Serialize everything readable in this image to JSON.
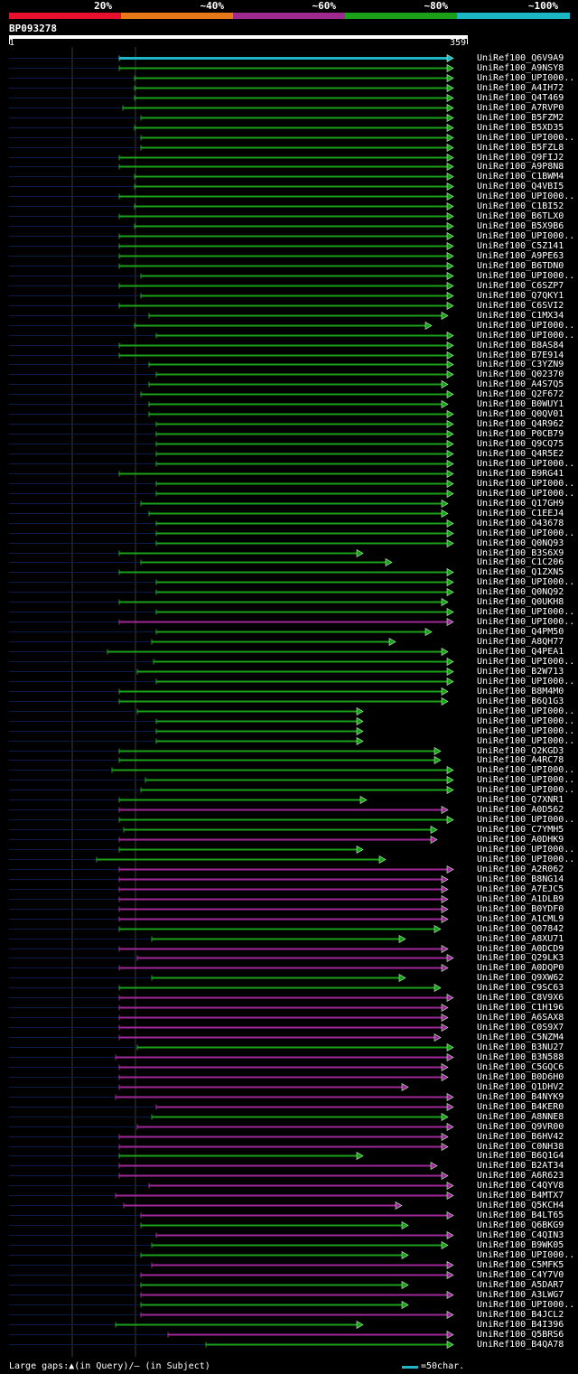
{
  "legend": [
    {
      "label": "20%",
      "color": "#e8112d"
    },
    {
      "label": "~40%",
      "color": "#e67817"
    },
    {
      "label": "~60%",
      "color": "#9e2a8e"
    },
    {
      "label": "~80%",
      "color": "#1aa019"
    },
    {
      "label": "~100%",
      "color": "#1bb7c4"
    }
  ],
  "query": {
    "id": "BP093278",
    "start": "1",
    "end": "359",
    "length": 359
  },
  "colors": {
    "green": "#1aa019",
    "magenta": "#a0289a",
    "cyan": "#1bb7c4",
    "gridline": "#3a3a3a",
    "leader": "#0a1a4a"
  },
  "hits": [
    {
      "name": "UniRef100_Q6V9A9",
      "start": 132,
      "end": 496,
      "color": "cyan"
    },
    {
      "name": "UniRef100_A9NSY8",
      "start": 132,
      "end": 496,
      "color": "green"
    },
    {
      "name": "UniRef100_UPI000..",
      "start": 149,
      "end": 496,
      "color": "green"
    },
    {
      "name": "UniRef100_A4IH72",
      "start": 149,
      "end": 496,
      "color": "green"
    },
    {
      "name": "UniRef100_Q4T469",
      "start": 149,
      "end": 496,
      "color": "green"
    },
    {
      "name": "UniRef100_A7RVP0",
      "start": 136,
      "end": 496,
      "color": "green"
    },
    {
      "name": "UniRef100_B5FZM2",
      "start": 156,
      "end": 496,
      "color": "green"
    },
    {
      "name": "UniRef100_B5XD35",
      "start": 149,
      "end": 496,
      "color": "green"
    },
    {
      "name": "UniRef100_UPI000..",
      "start": 156,
      "end": 496,
      "color": "green"
    },
    {
      "name": "UniRef100_B5FZL8",
      "start": 156,
      "end": 496,
      "color": "green"
    },
    {
      "name": "UniRef100_Q9FIJ2",
      "start": 132,
      "end": 496,
      "color": "green"
    },
    {
      "name": "UniRef100_A9P8N8",
      "start": 132,
      "end": 496,
      "color": "green"
    },
    {
      "name": "UniRef100_C1BWM4",
      "start": 149,
      "end": 496,
      "color": "green"
    },
    {
      "name": "UniRef100_Q4VBI5",
      "start": 149,
      "end": 496,
      "color": "green"
    },
    {
      "name": "UniRef100_UPI000..",
      "start": 132,
      "end": 496,
      "color": "green"
    },
    {
      "name": "UniRef100_C1BI52",
      "start": 149,
      "end": 496,
      "color": "green"
    },
    {
      "name": "UniRef100_B6TLX0",
      "start": 132,
      "end": 496,
      "color": "green"
    },
    {
      "name": "UniRef100_B5X9B6",
      "start": 149,
      "end": 496,
      "color": "green"
    },
    {
      "name": "UniRef100_UPI000..",
      "start": 132,
      "end": 496,
      "color": "green"
    },
    {
      "name": "UniRef100_C5Z141",
      "start": 132,
      "end": 496,
      "color": "green"
    },
    {
      "name": "UniRef100_A9PE63",
      "start": 132,
      "end": 496,
      "color": "green"
    },
    {
      "name": "UniRef100_B6TDN0",
      "start": 132,
      "end": 496,
      "color": "green"
    },
    {
      "name": "UniRef100_UPI000..",
      "start": 156,
      "end": 496,
      "color": "green"
    },
    {
      "name": "UniRef100_C6SZP7",
      "start": 132,
      "end": 496,
      "color": "green"
    },
    {
      "name": "UniRef100_Q7QKY1",
      "start": 156,
      "end": 496,
      "color": "green"
    },
    {
      "name": "UniRef100_C6SVI2",
      "start": 132,
      "end": 496,
      "color": "green"
    },
    {
      "name": "UniRef100_C1MX34",
      "start": 165,
      "end": 490,
      "color": "green"
    },
    {
      "name": "UniRef100_UPI000..",
      "start": 149,
      "end": 472,
      "color": "green"
    },
    {
      "name": "UniRef100_UPI000..",
      "start": 173,
      "end": 496,
      "color": "green"
    },
    {
      "name": "UniRef100_B8AS84",
      "start": 132,
      "end": 496,
      "color": "green"
    },
    {
      "name": "UniRef100_B7E914",
      "start": 132,
      "end": 496,
      "color": "green"
    },
    {
      "name": "UniRef100_C3YZN9",
      "start": 165,
      "end": 496,
      "color": "green"
    },
    {
      "name": "UniRef100_Q02370",
      "start": 173,
      "end": 496,
      "color": "green"
    },
    {
      "name": "UniRef100_A4S7Q5",
      "start": 165,
      "end": 490,
      "color": "green"
    },
    {
      "name": "UniRef100_Q2F672",
      "start": 156,
      "end": 496,
      "color": "green"
    },
    {
      "name": "UniRef100_B0WUY1",
      "start": 165,
      "end": 490,
      "color": "green"
    },
    {
      "name": "UniRef100_Q0QV01",
      "start": 165,
      "end": 496,
      "color": "green"
    },
    {
      "name": "UniRef100_Q4R962",
      "start": 173,
      "end": 496,
      "color": "green"
    },
    {
      "name": "UniRef100_P0CB79",
      "start": 173,
      "end": 496,
      "color": "green"
    },
    {
      "name": "UniRef100_Q9CQ75",
      "start": 173,
      "end": 496,
      "color": "green"
    },
    {
      "name": "UniRef100_Q4R5E2",
      "start": 173,
      "end": 496,
      "color": "green"
    },
    {
      "name": "UniRef100_UPI000..",
      "start": 173,
      "end": 496,
      "color": "green"
    },
    {
      "name": "UniRef100_B9RG41",
      "start": 132,
      "end": 496,
      "color": "green"
    },
    {
      "name": "UniRef100_UPI000..",
      "start": 173,
      "end": 496,
      "color": "green"
    },
    {
      "name": "UniRef100_UPI000..",
      "start": 173,
      "end": 496,
      "color": "green"
    },
    {
      "name": "UniRef100_Q17GH9",
      "start": 156,
      "end": 490,
      "color": "green"
    },
    {
      "name": "UniRef100_C1EEJ4",
      "start": 165,
      "end": 490,
      "color": "green"
    },
    {
      "name": "UniRef100_O43678",
      "start": 173,
      "end": 496,
      "color": "green"
    },
    {
      "name": "UniRef100_UPI000..",
      "start": 173,
      "end": 496,
      "color": "green"
    },
    {
      "name": "UniRef100_Q0NQ93",
      "start": 173,
      "end": 496,
      "color": "green"
    },
    {
      "name": "UniRef100_B3S6X9",
      "start": 132,
      "end": 396,
      "color": "green"
    },
    {
      "name": "UniRef100_C1C206",
      "start": 156,
      "end": 428,
      "color": "green"
    },
    {
      "name": "UniRef100_Q1ZXN5",
      "start": 132,
      "end": 496,
      "color": "green"
    },
    {
      "name": "UniRef100_UPI000..",
      "start": 173,
      "end": 496,
      "color": "green"
    },
    {
      "name": "UniRef100_Q0NQ92",
      "start": 173,
      "end": 496,
      "color": "green"
    },
    {
      "name": "UniRef100_Q0UKH8",
      "start": 132,
      "end": 490,
      "color": "green"
    },
    {
      "name": "UniRef100_UPI000..",
      "start": 173,
      "end": 496,
      "color": "green"
    },
    {
      "name": "UniRef100_UPI000..",
      "start": 132,
      "end": 496,
      "color": "magenta"
    },
    {
      "name": "UniRef100_Q4PM50",
      "start": 173,
      "end": 472,
      "color": "green"
    },
    {
      "name": "UniRef100_A8QH77",
      "start": 168,
      "end": 432,
      "color": "green"
    },
    {
      "name": "UniRef100_Q4PEA1",
      "start": 119,
      "end": 490,
      "color": "green"
    },
    {
      "name": "UniRef100_UPI000..",
      "start": 170,
      "end": 496,
      "color": "green"
    },
    {
      "name": "UniRef100_B2W713",
      "start": 152,
      "end": 496,
      "color": "green"
    },
    {
      "name": "UniRef100_UPI000..",
      "start": 173,
      "end": 496,
      "color": "green"
    },
    {
      "name": "UniRef100_B8M4M0",
      "start": 132,
      "end": 490,
      "color": "green"
    },
    {
      "name": "UniRef100_B6Q1G3",
      "start": 132,
      "end": 490,
      "color": "green"
    },
    {
      "name": "UniRef100_UPI000..",
      "start": 152,
      "end": 396,
      "color": "green"
    },
    {
      "name": "UniRef100_UPI000..",
      "start": 173,
      "end": 396,
      "color": "green"
    },
    {
      "name": "UniRef100_UPI000..",
      "start": 173,
      "end": 396,
      "color": "green"
    },
    {
      "name": "UniRef100_UPI000..",
      "start": 173,
      "end": 396,
      "color": "green"
    },
    {
      "name": "UniRef100_Q2KGD3",
      "start": 132,
      "end": 482,
      "color": "green"
    },
    {
      "name": "UniRef100_A4RC78",
      "start": 132,
      "end": 482,
      "color": "green"
    },
    {
      "name": "UniRef100_UPI000..",
      "start": 124,
      "end": 496,
      "color": "green"
    },
    {
      "name": "UniRef100_UPI000..",
      "start": 161,
      "end": 496,
      "color": "green"
    },
    {
      "name": "UniRef100_UPI000..",
      "start": 156,
      "end": 496,
      "color": "green"
    },
    {
      "name": "UniRef100_Q7XNR1",
      "start": 132,
      "end": 400,
      "color": "green"
    },
    {
      "name": "UniRef100_A0D562",
      "start": 132,
      "end": 490,
      "color": "magenta"
    },
    {
      "name": "UniRef100_UPI000..",
      "start": 132,
      "end": 496,
      "color": "green"
    },
    {
      "name": "UniRef100_C7YMH5",
      "start": 137,
      "end": 478,
      "color": "green"
    },
    {
      "name": "UniRef100_A0DHK9",
      "start": 132,
      "end": 478,
      "color": "magenta"
    },
    {
      "name": "UniRef100_UPI000..",
      "start": 132,
      "end": 396,
      "color": "green"
    },
    {
      "name": "UniRef100_UPI000..",
      "start": 107,
      "end": 421,
      "color": "green"
    },
    {
      "name": "UniRef100_A2R062",
      "start": 132,
      "end": 496,
      "color": "magenta"
    },
    {
      "name": "UniRef100_B8NG14",
      "start": 132,
      "end": 490,
      "color": "magenta"
    },
    {
      "name": "UniRef100_A7EJC5",
      "start": 132,
      "end": 490,
      "color": "magenta"
    },
    {
      "name": "UniRef100_A1DLB9",
      "start": 132,
      "end": 490,
      "color": "magenta"
    },
    {
      "name": "UniRef100_B0YDF0",
      "start": 132,
      "end": 490,
      "color": "magenta"
    },
    {
      "name": "UniRef100_A1CML9",
      "start": 132,
      "end": 490,
      "color": "magenta"
    },
    {
      "name": "UniRef100_Q07842",
      "start": 132,
      "end": 482,
      "color": "green"
    },
    {
      "name": "UniRef100_A8XU71",
      "start": 168,
      "end": 443,
      "color": "green"
    },
    {
      "name": "UniRef100_A0DCD9",
      "start": 132,
      "end": 490,
      "color": "magenta"
    },
    {
      "name": "UniRef100_Q29LK3",
      "start": 152,
      "end": 496,
      "color": "magenta"
    },
    {
      "name": "UniRef100_A0DQP0",
      "start": 132,
      "end": 490,
      "color": "magenta"
    },
    {
      "name": "UniRef100_Q9XW62",
      "start": 168,
      "end": 443,
      "color": "green"
    },
    {
      "name": "UniRef100_C9SC63",
      "start": 132,
      "end": 482,
      "color": "green"
    },
    {
      "name": "UniRef100_C8V9X6",
      "start": 132,
      "end": 496,
      "color": "magenta"
    },
    {
      "name": "UniRef100_C1H196",
      "start": 132,
      "end": 490,
      "color": "magenta"
    },
    {
      "name": "UniRef100_A6SAX8",
      "start": 132,
      "end": 490,
      "color": "magenta"
    },
    {
      "name": "UniRef100_C0S9X7",
      "start": 132,
      "end": 490,
      "color": "magenta"
    },
    {
      "name": "UniRef100_C5NZM4",
      "start": 132,
      "end": 482,
      "color": "magenta"
    },
    {
      "name": "UniRef100_B3NU27",
      "start": 152,
      "end": 496,
      "color": "green"
    },
    {
      "name": "UniRef100_B3N588",
      "start": 128,
      "end": 496,
      "color": "magenta"
    },
    {
      "name": "UniRef100_C5GQC6",
      "start": 132,
      "end": 490,
      "color": "magenta"
    },
    {
      "name": "UniRef100_B0D6H0",
      "start": 132,
      "end": 490,
      "color": "magenta"
    },
    {
      "name": "UniRef100_Q1DHV2",
      "start": 132,
      "end": 446,
      "color": "magenta"
    },
    {
      "name": "UniRef100_B4NYK9",
      "start": 128,
      "end": 496,
      "color": "magenta"
    },
    {
      "name": "UniRef100_B4KER0",
      "start": 173,
      "end": 496,
      "color": "magenta"
    },
    {
      "name": "UniRef100_A8NNE8",
      "start": 168,
      "end": 490,
      "color": "green"
    },
    {
      "name": "UniRef100_Q9VR00",
      "start": 152,
      "end": 496,
      "color": "magenta"
    },
    {
      "name": "UniRef100_B6HV42",
      "start": 132,
      "end": 490,
      "color": "magenta"
    },
    {
      "name": "UniRef100_C0NH38",
      "start": 132,
      "end": 490,
      "color": "magenta"
    },
    {
      "name": "UniRef100_B6Q1G4",
      "start": 132,
      "end": 396,
      "color": "green"
    },
    {
      "name": "UniRef100_B2AT34",
      "start": 132,
      "end": 478,
      "color": "magenta"
    },
    {
      "name": "UniRef100_A6R623",
      "start": 132,
      "end": 490,
      "color": "magenta"
    },
    {
      "name": "UniRef100_C4QYV8",
      "start": 165,
      "end": 496,
      "color": "magenta"
    },
    {
      "name": "UniRef100_B4MTX7",
      "start": 128,
      "end": 496,
      "color": "magenta"
    },
    {
      "name": "UniRef100_Q5KCH4",
      "start": 137,
      "end": 439,
      "color": "magenta"
    },
    {
      "name": "UniRef100_B4LT65",
      "start": 156,
      "end": 496,
      "color": "magenta"
    },
    {
      "name": "UniRef100_Q6BKG9",
      "start": 156,
      "end": 446,
      "color": "green"
    },
    {
      "name": "UniRef100_C4QIN3",
      "start": 173,
      "end": 496,
      "color": "magenta"
    },
    {
      "name": "UniRef100_B9WK05",
      "start": 168,
      "end": 490,
      "color": "green"
    },
    {
      "name": "UniRef100_UPI000..",
      "start": 156,
      "end": 446,
      "color": "green"
    },
    {
      "name": "UniRef100_C5MFK5",
      "start": 168,
      "end": 496,
      "color": "magenta"
    },
    {
      "name": "UniRef100_C4Y7V0",
      "start": 156,
      "end": 496,
      "color": "magenta"
    },
    {
      "name": "UniRef100_A5DAR7",
      "start": 156,
      "end": 446,
      "color": "green"
    },
    {
      "name": "UniRef100_A3LWG7",
      "start": 156,
      "end": 496,
      "color": "magenta"
    },
    {
      "name": "UniRef100_UPI000..",
      "start": 156,
      "end": 446,
      "color": "green"
    },
    {
      "name": "UniRef100_B4JCL2",
      "start": 156,
      "end": 496,
      "color": "magenta"
    },
    {
      "name": "UniRef100_B4I396",
      "start": 128,
      "end": 396,
      "color": "green"
    },
    {
      "name": "UniRef100_Q5BRS6",
      "start": 186,
      "end": 496,
      "color": "magenta"
    },
    {
      "name": "UniRef100_B4QA78",
      "start": 228,
      "end": 496,
      "color": "green"
    }
  ],
  "footer": {
    "gaps_text": "Large gaps:▲(in Query)/— (in Subject)",
    "scale_text": "=50char."
  }
}
